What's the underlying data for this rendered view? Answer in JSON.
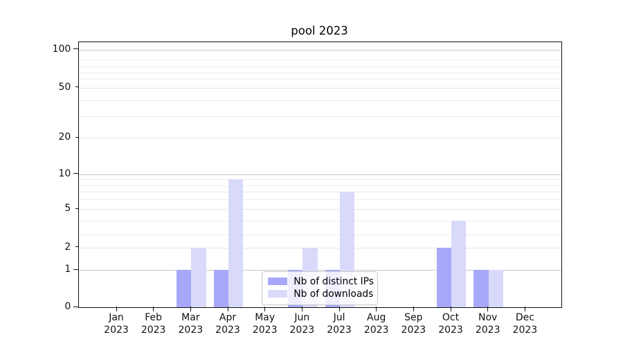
{
  "title": "pool 2023",
  "chart_data": {
    "type": "bar",
    "title": "pool 2023",
    "categories": [
      "Jan 2023",
      "Feb 2023",
      "Mar 2023",
      "Apr 2023",
      "May 2023",
      "Jun 2023",
      "Jul 2023",
      "Aug 2023",
      "Sep 2023",
      "Oct 2023",
      "Nov 2023",
      "Dec 2023"
    ],
    "series": [
      {
        "name": "Nb of distinct IPs",
        "color": "#a8a8fa",
        "values": [
          0,
          0,
          1,
          1,
          0,
          1,
          1,
          0,
          0,
          2,
          1,
          0
        ]
      },
      {
        "name": "Nb of downloads",
        "color": "#d9d9fa",
        "values": [
          0,
          0,
          2,
          9,
          0,
          2,
          7,
          0,
          0,
          4,
          1,
          0
        ]
      }
    ],
    "xlabel": "",
    "ylabel": "",
    "y_axis": {
      "scale": "log-like (symlog, linear below 1)",
      "tick_labels": [
        "0",
        "1",
        "2",
        "5",
        "10",
        "20",
        "50",
        "100"
      ],
      "major_ticks": [
        0,
        1,
        10,
        100
      ],
      "labeled_minor_ticks": [
        2,
        5,
        20,
        50
      ],
      "unlabeled_minor_ticks": [
        3,
        4,
        6,
        7,
        8,
        9,
        30,
        40,
        60,
        70,
        80,
        90
      ],
      "ylim": [
        0,
        130
      ]
    },
    "grid": true,
    "legend": {
      "position": "inside-bottom-center",
      "entries": [
        "Nb of distinct IPs",
        "Nb of downloads"
      ]
    }
  }
}
